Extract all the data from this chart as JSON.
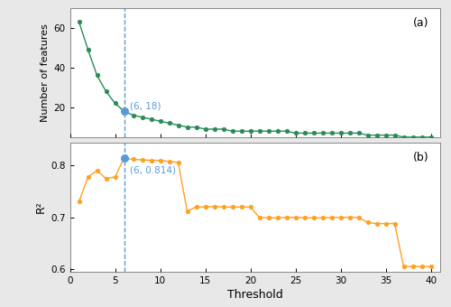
{
  "threshold_values": [
    1,
    2,
    3,
    4,
    5,
    6,
    7,
    8,
    9,
    10,
    11,
    12,
    13,
    14,
    15,
    16,
    17,
    18,
    19,
    20,
    21,
    22,
    23,
    24,
    25,
    26,
    27,
    28,
    29,
    30,
    31,
    32,
    33,
    34,
    35,
    36,
    37,
    38,
    39,
    40
  ],
  "num_features": [
    63,
    49,
    36,
    28,
    22,
    18,
    16,
    15,
    14,
    13,
    12,
    11,
    10,
    10,
    9,
    9,
    9,
    8,
    8,
    8,
    8,
    8,
    8,
    8,
    7,
    7,
    7,
    7,
    7,
    7,
    7,
    7,
    6,
    6,
    6,
    6,
    5,
    5,
    5,
    5
  ],
  "r2_values": [
    0.73,
    0.778,
    0.79,
    0.775,
    0.778,
    0.814,
    0.812,
    0.811,
    0.81,
    0.81,
    0.808,
    0.806,
    0.712,
    0.72,
    0.72,
    0.721,
    0.72,
    0.72,
    0.72,
    0.72,
    0.7,
    0.699,
    0.699,
    0.7,
    0.7,
    0.699,
    0.699,
    0.699,
    0.7,
    0.7,
    0.7,
    0.7,
    0.69,
    0.688,
    0.688,
    0.688,
    0.605,
    0.605,
    0.605,
    0.605
  ],
  "highlight_x": 6,
  "highlight_y_a": 18,
  "highlight_y_b": 0.814,
  "vline_x": 6,
  "green_color": "#2a8a57",
  "orange_color": "#FFA020",
  "blue_color": "#5b9bd5",
  "marker_highlight_color": "#5b9bd5",
  "dashed_line_color": "#5b9bd5",
  "annotation_color": "#5b9bd5",
  "background_color": "#ffffff",
  "panel_bg": "#ffffff",
  "outer_bg": "#e8e8e8",
  "label_a": "(a)",
  "label_b": "(b)",
  "ylabel_a": "Number of features",
  "ylabel_b": "R²",
  "xlabel": "Threshold",
  "ylim_a": [
    5,
    70
  ],
  "ylim_b": [
    0.595,
    0.845
  ],
  "yticks_a": [
    20,
    40,
    60
  ],
  "yticks_b": [
    0.6,
    0.7,
    0.8
  ],
  "xlim": [
    0,
    41
  ],
  "xticks": [
    0,
    5,
    10,
    15,
    20,
    25,
    30,
    35,
    40
  ]
}
